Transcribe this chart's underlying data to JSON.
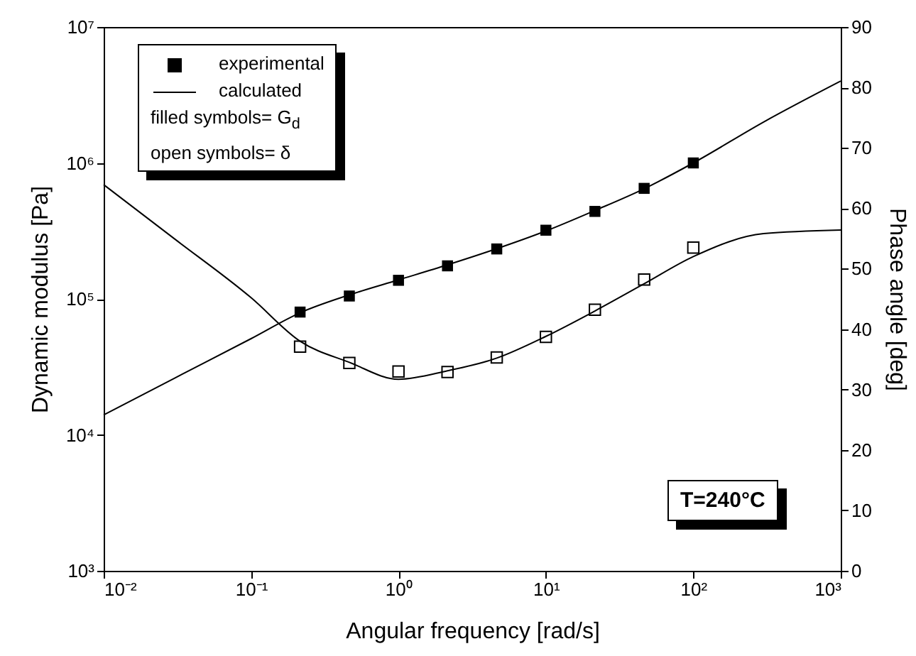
{
  "chart_data": {
    "type": "line",
    "xlabel": "Angular frequency [rad/s]",
    "ylabel": "Dynamic modulus [Pa]",
    "y2label": "Phase angle [deg]",
    "log": "xy",
    "grid": false,
    "legend": "top left",
    "xlim": [
      0.01,
      1000
    ],
    "xticks": [
      {
        "value": 0.01,
        "label": "10⁻²"
      },
      {
        "value": 0.1,
        "label": "10⁻¹"
      },
      {
        "value": 1,
        "label": "10⁰"
      },
      {
        "value": 10,
        "label": "10¹"
      },
      {
        "value": 100,
        "label": "10²"
      },
      {
        "value": 1000,
        "label": "10³"
      }
    ],
    "ylim": [
      1000,
      10000000
    ],
    "yticks": [
      {
        "value": 1000,
        "label": "10³"
      },
      {
        "value": 10000,
        "label": "10⁴"
      },
      {
        "value": 100000,
        "label": "10⁵"
      },
      {
        "value": 1000000,
        "label": "10⁶"
      },
      {
        "value": 10000000,
        "label": "10⁷"
      }
    ],
    "y2lim": [
      0,
      90
    ],
    "y2ticks": [
      0,
      10,
      20,
      30,
      40,
      50,
      60,
      70,
      80,
      90
    ],
    "annotations": [
      "filled symbols= G$_{d}$",
      "open symbols= δ",
      "T=240°C"
    ],
    "series": [
      {
        "name": "experimental",
        "type": "scatter",
        "marker": "square",
        "color": "#000000",
        "x": [
          0.215,
          0.464,
          1,
          2.15,
          4.64,
          10,
          21.5,
          46.4,
          100
        ],
        "values": [
          80000,
          105000,
          137000,
          175000,
          233000,
          320000,
          440000,
          650000,
          1000000
        ]
      },
      {
        "name": "calculated",
        "type": "line",
        "color": "#000000",
        "x": [
          0.01,
          0.03,
          0.1,
          0.215,
          0.464,
          1,
          2.15,
          4.64,
          10,
          21.5,
          46.4,
          100,
          300,
          1000
        ],
        "values": [
          14000,
          26000,
          51000,
          79000,
          107000,
          138000,
          178000,
          234000,
          316000,
          447000,
          646000,
          1000000,
          2000000,
          4000000
        ]
      },
      {
        "type": "scatter",
        "marker": "square",
        "axis": "y2",
        "color": "#000000",
        "x": [
          0.215,
          0.464,
          1,
          2.15,
          4.64,
          10,
          21.5,
          46.4,
          100
        ],
        "values": [
          37.1,
          34.4,
          33.0,
          32.9,
          35.3,
          38.7,
          43.2,
          48.2,
          53.5
        ]
      },
      {
        "type": "line",
        "axis": "y2",
        "color": "#000000",
        "x": [
          0.01,
          0.03,
          0.1,
          0.215,
          0.464,
          1,
          2.15,
          4.64,
          10,
          21.5,
          46.4,
          100,
          300,
          1000
        ],
        "values": [
          63.9,
          55,
          45.2,
          38,
          34.5,
          31.7,
          33.1,
          35.2,
          38.8,
          43,
          47.5,
          52,
          55.8,
          56.4
        ]
      }
    ]
  }
}
